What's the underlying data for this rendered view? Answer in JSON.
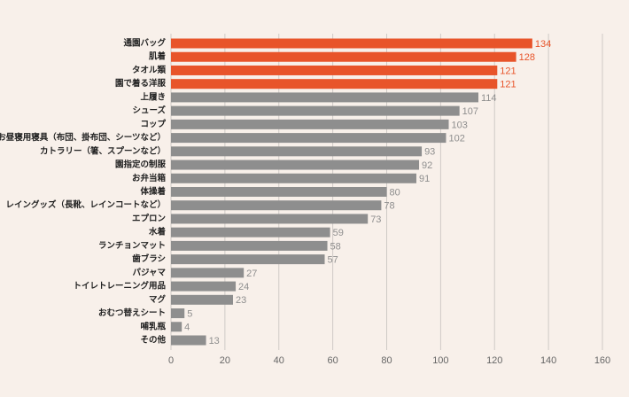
{
  "chart_data": {
    "type": "barh",
    "categories": [
      "通園バッグ",
      "肌着",
      "タオル類",
      "園で着る洋服",
      "上履き",
      "シューズ",
      "コップ",
      "お昼寝用寝具（布団、掛布団、シーツなど）",
      "カトラリー（箸、スプーンなど）",
      "園指定の制服",
      "お弁当箱",
      "体操着",
      "レイングッズ（長靴、レインコートなど）",
      "エプロン",
      "水着",
      "ランチョンマット",
      "歯ブラシ",
      "パジャマ",
      "トイレトレーニング用品",
      "マグ",
      "おむつ替えシート",
      "哺乳瓶",
      "その他"
    ],
    "values": [
      134,
      128,
      121,
      121,
      114,
      107,
      103,
      102,
      93,
      92,
      91,
      80,
      78,
      73,
      59,
      58,
      57,
      27,
      24,
      23,
      5,
      4,
      13
    ],
    "colors": [
      "#e8542a",
      "#e8542a",
      "#e8542a",
      "#e8542a",
      "#8e8e8e",
      "#8e8e8e",
      "#8e8e8e",
      "#8e8e8e",
      "#8e8e8e",
      "#8e8e8e",
      "#8e8e8e",
      "#8e8e8e",
      "#8e8e8e",
      "#8e8e8e",
      "#8e8e8e",
      "#8e8e8e",
      "#8e8e8e",
      "#8e8e8e",
      "#8e8e8e",
      "#8e8e8e",
      "#8e8e8e",
      "#8e8e8e",
      "#8e8e8e"
    ],
    "xlim": [
      0,
      160
    ],
    "xticks": [
      0,
      20,
      40,
      60,
      80,
      100,
      120,
      140,
      160
    ],
    "grid": true
  }
}
